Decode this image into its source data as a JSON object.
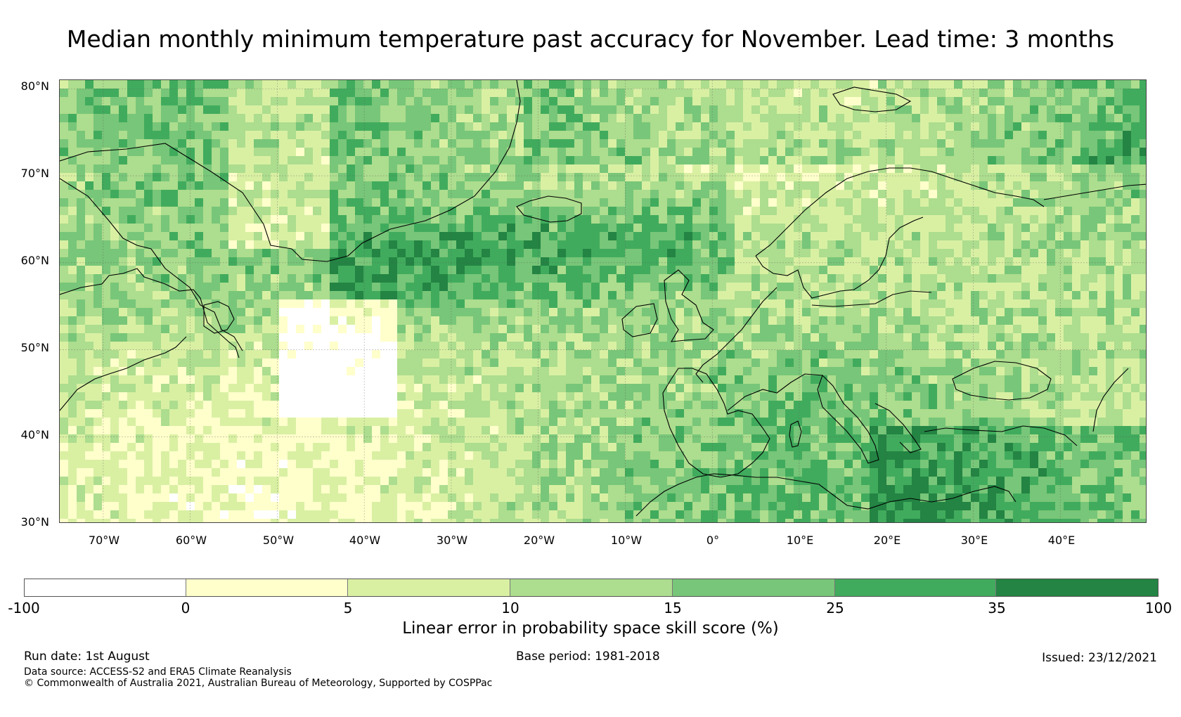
{
  "title": "Median monthly minimum temperature past accuracy for November. Lead time: 3 months",
  "map": {
    "lat_ticks": [
      "80°N",
      "70°N",
      "60°N",
      "50°N",
      "40°N",
      "30°N"
    ],
    "lon_ticks": [
      "70°W",
      "60°W",
      "50°W",
      "40°W",
      "30°W",
      "20°W",
      "10°W",
      "0°",
      "10°E",
      "20°E",
      "30°E",
      "40°E"
    ],
    "extent": {
      "lon_min": -75,
      "lon_max": 50,
      "lat_min": 30,
      "lat_max": 81
    }
  },
  "colorbar": {
    "label": "Linear error in probability space skill score (%)",
    "tick_labels": [
      "-100",
      "0",
      "5",
      "10",
      "15",
      "25",
      "35",
      "100"
    ],
    "colors": [
      "#ffffff",
      "#ffffcc",
      "#d9f0a3",
      "#addd8e",
      "#78c679",
      "#41ab5d",
      "#238443"
    ]
  },
  "footer": {
    "run_date": "Run date: 1st August",
    "base_period": "Base period: 1981-2018",
    "issued": "Issued: 23/12/2021",
    "data_source": "Data source: ACCESS-S2 and ERA5 Climate Reanalysis",
    "copyright": "© Commonwealth of Australia 2021, Australian Bureau of Meteorology, Supported by COSPPac"
  }
}
